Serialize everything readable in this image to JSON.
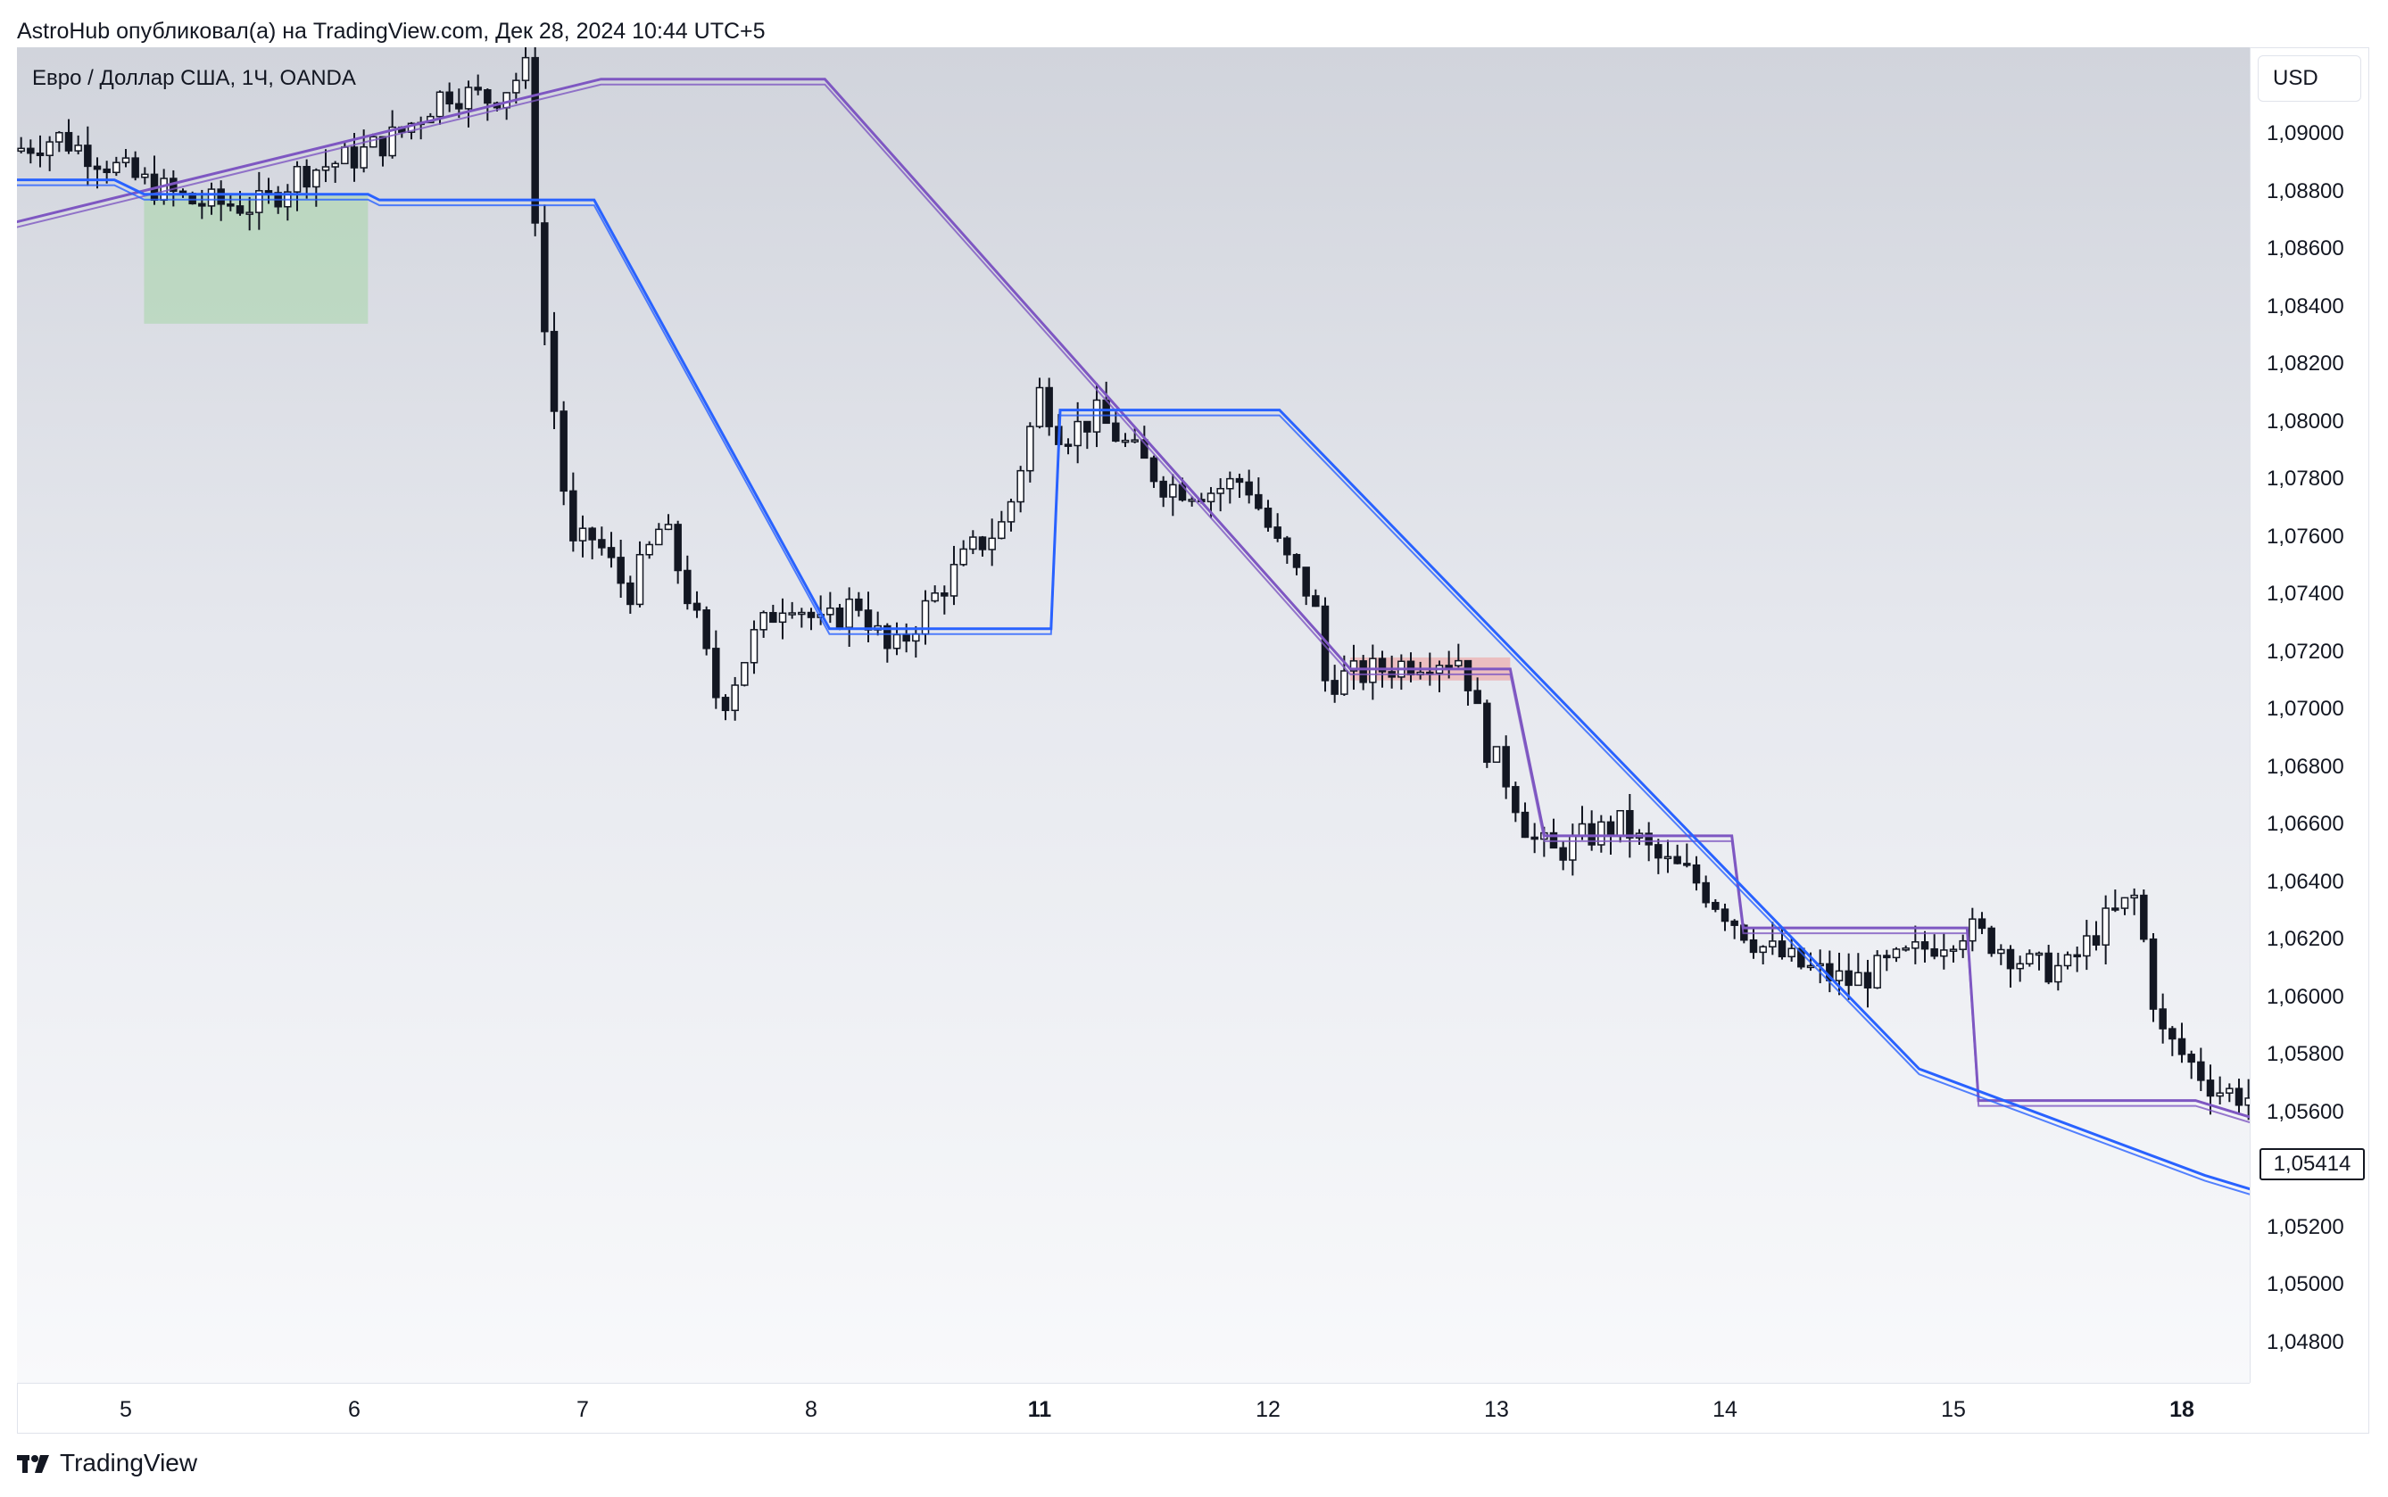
{
  "header": {
    "text": "AstroHub опубликовал(а) на TradingView.com, Дек 28, 2024 10:44 UTC+5"
  },
  "symbol": {
    "label": "Евро / Доллар США, 1Ч, OANDA"
  },
  "currency": "USD",
  "last_price": "1,05414",
  "brand": "TradingView",
  "chart_data": {
    "type": "candlestick",
    "y_ticks": [
      "1,09000",
      "1,08800",
      "1,08600",
      "1,08400",
      "1,08200",
      "1,08000",
      "1,07800",
      "1,07600",
      "1,07400",
      "1,07200",
      "1,07000",
      "1,06800",
      "1,06600",
      "1,06400",
      "1,06200",
      "1,06000",
      "1,05800",
      "1,05600",
      "1,05400",
      "1,05200",
      "1,05000",
      "1,04800"
    ],
    "ylim": [
      1.0465,
      1.0919
    ],
    "x_ticks": [
      {
        "label": "5",
        "bold": false
      },
      {
        "label": "6",
        "bold": false
      },
      {
        "label": "7",
        "bold": false
      },
      {
        "label": "8",
        "bold": false
      },
      {
        "label": "11",
        "bold": true
      },
      {
        "label": "12",
        "bold": false
      },
      {
        "label": "13",
        "bold": false
      },
      {
        "label": "14",
        "bold": false
      },
      {
        "label": "15",
        "bold": false
      },
      {
        "label": "18",
        "bold": true
      }
    ],
    "close_path": [
      [
        -0.5,
        1.0894
      ],
      [
        -0.3,
        1.0899
      ],
      [
        -0.15,
        1.0893
      ],
      [
        0.05,
        1.0884
      ],
      [
        0.3,
        1.0876
      ],
      [
        0.6,
        1.0875
      ],
      [
        0.75,
        1.0886
      ],
      [
        1.0,
        1.0892
      ],
      [
        1.2,
        1.09
      ],
      [
        1.4,
        1.0915
      ],
      [
        1.6,
        1.0912
      ],
      [
        1.75,
        1.0922
      ],
      [
        1.82,
        1.084
      ],
      [
        1.95,
        1.0755
      ],
      [
        2.05,
        1.076
      ],
      [
        2.2,
        1.074
      ],
      [
        2.35,
        1.0765
      ],
      [
        2.5,
        1.073
      ],
      [
        2.6,
        1.07
      ],
      [
        2.75,
        1.0725
      ],
      [
        2.9,
        1.074
      ],
      [
        3.05,
        1.0728
      ],
      [
        3.2,
        1.0738
      ],
      [
        3.35,
        1.0718
      ],
      [
        3.5,
        1.0735
      ],
      [
        3.7,
        1.0755
      ],
      [
        3.85,
        1.0765
      ],
      [
        4.0,
        1.081
      ],
      [
        4.1,
        1.0795
      ],
      [
        4.25,
        1.0802
      ],
      [
        4.4,
        1.079
      ],
      [
        4.55,
        1.0778
      ],
      [
        4.75,
        1.0776
      ],
      [
        4.9,
        1.078
      ],
      [
        5.05,
        1.0755
      ],
      [
        5.2,
        1.0738
      ],
      [
        5.25,
        1.071
      ],
      [
        5.4,
        1.0712
      ],
      [
        5.55,
        1.0715
      ],
      [
        5.7,
        1.0718
      ],
      [
        5.85,
        1.0718
      ],
      [
        5.95,
        1.0688
      ],
      [
        6.05,
        1.0675
      ],
      [
        6.15,
        1.0655
      ],
      [
        6.25,
        1.065
      ],
      [
        6.4,
        1.0656
      ],
      [
        6.55,
        1.066
      ],
      [
        6.7,
        1.0648
      ],
      [
        6.85,
        1.0642
      ],
      [
        7.0,
        1.063
      ],
      [
        7.15,
        1.0618
      ],
      [
        7.35,
        1.061
      ],
      [
        7.55,
        1.0605
      ],
      [
        7.75,
        1.0612
      ],
      [
        7.9,
        1.0618
      ],
      [
        8.05,
        1.0624
      ],
      [
        8.2,
        1.0618
      ],
      [
        8.35,
        1.061
      ],
      [
        8.5,
        1.061
      ],
      [
        8.65,
        1.0625
      ],
      [
        8.8,
        1.0635
      ],
      [
        8.9,
        1.0588
      ],
      [
        9.0,
        1.058
      ],
      [
        9.15,
        1.0568
      ],
      [
        9.3,
        1.0565
      ],
      [
        9.45,
        1.0557
      ],
      [
        9.6,
        1.0552
      ],
      [
        9.75,
        1.055
      ],
      [
        9.88,
        1.053
      ],
      [
        9.98,
        1.0508
      ],
      [
        10.1,
        1.053
      ],
      [
        10.2,
        1.0545
      ],
      [
        10.3,
        1.0562
      ],
      [
        10.4,
        1.0548
      ],
      [
        10.5,
        1.0532
      ],
      [
        10.6,
        1.0522
      ],
      [
        10.75,
        1.053
      ],
      [
        10.9,
        1.0538
      ],
      [
        11.05,
        1.0545
      ],
      [
        11.25,
        1.0555
      ],
      [
        11.35,
        1.057
      ],
      [
        11.5,
        1.0575
      ],
      [
        11.6,
        1.0578
      ],
      [
        11.72,
        1.056
      ],
      [
        11.82,
        1.0535
      ],
      [
        11.95,
        1.0548
      ],
      [
        12.05,
        1.0532
      ],
      [
        12.15,
        1.054
      ],
      [
        12.25,
        1.0548
      ],
      [
        12.35,
        1.0541
      ]
    ],
    "overlays": [
      {
        "name": "",
        "color": "#7e57c2",
        "points": [
          [
            -0.55,
            1.0868
          ],
          [
            2.08,
            1.0919
          ],
          [
            3.06,
            1.0919
          ],
          [
            5.36,
            1.0714
          ],
          [
            6.06,
            1.0714
          ],
          [
            6.21,
            1.0656
          ],
          [
            7.03,
            1.0656
          ],
          [
            7.08,
            1.0624
          ],
          [
            8.06,
            1.0624
          ],
          [
            8.11,
            1.0564
          ],
          [
            9.06,
            1.0564
          ],
          [
            9.35,
            1.0557
          ]
        ]
      },
      {
        "name": "",
        "color": "#2962ff",
        "points": [
          [
            -0.55,
            1.0884
          ],
          [
            -0.05,
            1.0884
          ],
          [
            0.08,
            1.0879
          ],
          [
            1.06,
            1.0879
          ],
          [
            1.11,
            1.0877
          ],
          [
            2.05,
            1.0877
          ],
          [
            3.08,
            1.0728
          ],
          [
            4.05,
            1.0728
          ],
          [
            4.09,
            1.0804
          ],
          [
            5.05,
            1.0804
          ],
          [
            7.85,
            1.0575
          ],
          [
            9.1,
            1.0538
          ],
          [
            9.35,
            1.0532
          ]
        ]
      }
    ],
    "zones": [
      {
        "color": "#a5d6a7",
        "x0": 0.08,
        "x1": 1.06,
        "y0": 1.0834,
        "y1": 1.0879
      },
      {
        "color": "#ef9a9a",
        "x0": 5.36,
        "x1": 6.06,
        "y0": 1.071,
        "y1": 1.0718
      }
    ]
  }
}
